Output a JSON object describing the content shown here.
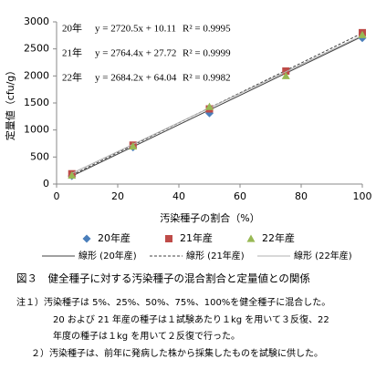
{
  "chart_data": {
    "type": "scatter",
    "y_label": "定量値（cfu/g）",
    "x_label": "汚染種子の割合（%）",
    "x": [
      5,
      25,
      50,
      75,
      100
    ],
    "xlim": [
      0,
      100
    ],
    "xticks": [
      0,
      20,
      40,
      60,
      80,
      100
    ],
    "ylim": [
      0,
      3000
    ],
    "yticks": [
      0,
      500,
      1000,
      1500,
      2000,
      2500,
      3000
    ],
    "series": [
      {
        "name": "20年産",
        "color": "#4a7ebb",
        "marker": "diamond",
        "values": [
          150,
          680,
          1310,
          2070,
          2700
        ],
        "fit": {
          "year_label": "20年",
          "slope": 2720.5,
          "intercept": 10.11,
          "equation": "y = 2720.5x + 10.11",
          "r2": 0.9995,
          "r2_label": "R² = 0.9995",
          "legend": "線形 (20年産)",
          "color": "#404040",
          "dash": "none"
        }
      },
      {
        "name": "21年産",
        "color": "#be4b48",
        "marker": "square",
        "values": [
          190,
          720,
          1390,
          2090,
          2800
        ],
        "fit": {
          "year_label": "21年",
          "slope": 2764.4,
          "intercept": 27.72,
          "equation": "y = 2764.4x + 27.72",
          "r2": 0.9999,
          "r2_label": "R² = 0.9999",
          "legend": "線形 (21年産)",
          "color": "#404040",
          "dash": "3,2"
        }
      },
      {
        "name": "22年産",
        "color": "#98b954",
        "marker": "triangle",
        "values": [
          160,
          700,
          1430,
          2000,
          2760
        ],
        "fit": {
          "year_label": "22年",
          "slope": 2684.2,
          "intercept": 64.04,
          "equation": "y = 2684.2x + 64.04",
          "r2": 0.9982,
          "r2_label": "R² = 0.9982",
          "legend": "線形 (22年産)",
          "color": "#b0b0b0",
          "dash": "none"
        }
      }
    ]
  },
  "caption": "図３　健全種子に対する汚染種子の混合割合と定量値との関係",
  "notes": [
    "注１）汚染種子は 5%、25%、50%、75%、100%を健全種子に混合した。",
    "20 および 21 年産の種子は１試験あたり１kg を用いて３反復、22",
    "年度の種子は１kg を用いて２反復で行った。",
    "２）汚染種子は、前年に発病した株から採集したものを試験に供した。"
  ]
}
